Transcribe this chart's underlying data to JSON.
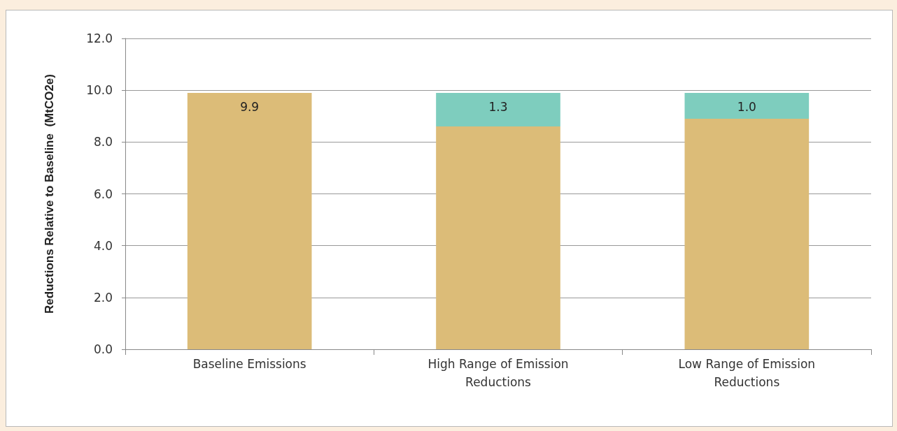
{
  "chart_data": {
    "type": "bar",
    "stacked": true,
    "ylabel": "Reductions Relative to Baseline  (MtCO2e)",
    "categories": [
      "Baseline Emissions",
      "High Range of Emission Reductions",
      "Low Range of Emission Reductions"
    ],
    "series": [
      {
        "color": "#dcbc78",
        "values": [
          9.9,
          8.6,
          8.9
        ],
        "value_labels": [
          "9.9",
          null,
          null
        ]
      },
      {
        "color": "#7ecdbe",
        "values": [
          null,
          1.3,
          1.0
        ],
        "value_labels": [
          null,
          "1.3",
          "1.0"
        ]
      }
    ],
    "ylim": [
      0,
      12
    ],
    "yticks": [
      {
        "value": 0,
        "label": "0.0"
      },
      {
        "value": 2,
        "label": "2.0"
      },
      {
        "value": 4,
        "label": "4.0"
      },
      {
        "value": 6,
        "label": "6.0"
      },
      {
        "value": 8,
        "label": "8.0"
      },
      {
        "value": 10,
        "label": "10.0"
      },
      {
        "value": 12,
        "label": "12.0"
      }
    ],
    "grid": "y"
  }
}
